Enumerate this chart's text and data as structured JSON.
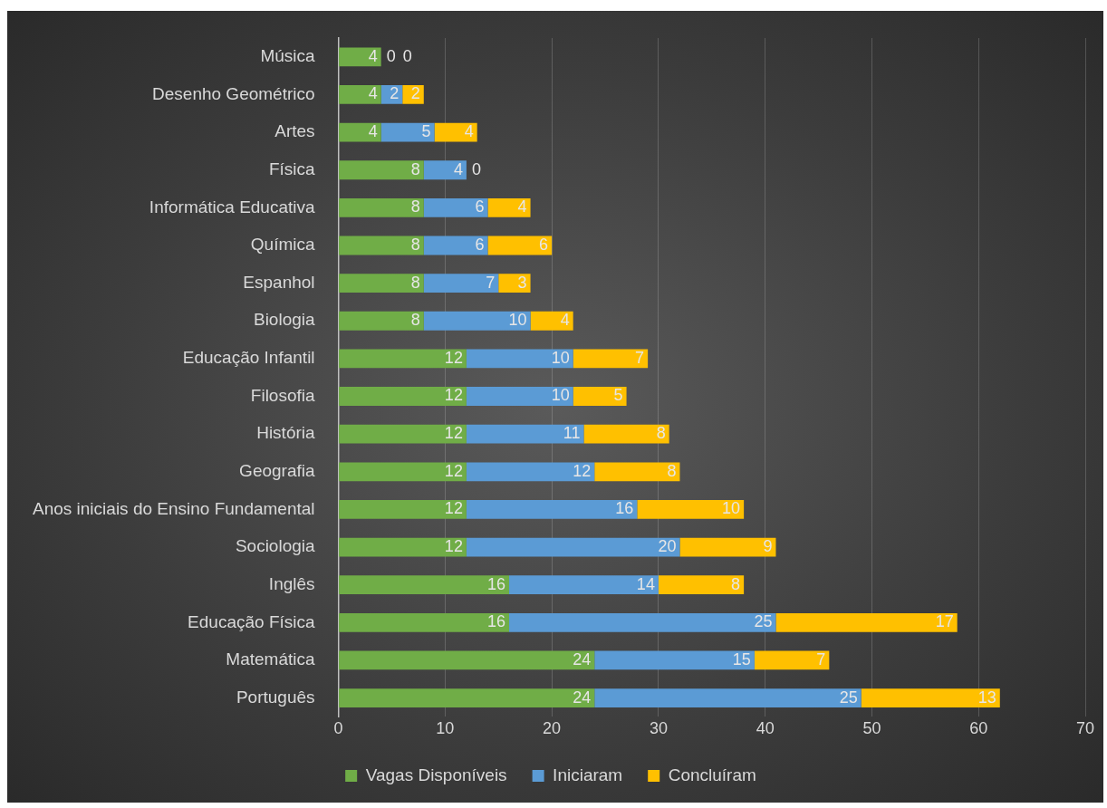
{
  "chart_data": {
    "type": "bar",
    "orientation": "horizontal",
    "stacked": true,
    "data_labels": true,
    "grid": "x",
    "legend": "bottom",
    "categories": [
      "Música",
      "Desenho Geométrico",
      "Artes",
      "Física",
      "Informática Educativa",
      "Química",
      "Espanhol",
      "Biologia",
      "Educação Infantil",
      "Filosofia",
      "História",
      "Geografia",
      "Anos iniciais do Ensino Fundamental",
      "Sociologia",
      "Inglês",
      "Educação Física",
      "Matemática",
      "Português"
    ],
    "series": [
      {
        "name": "Vagas Disponíveis",
        "color": "#70ad47",
        "values": [
          4,
          4,
          4,
          8,
          8,
          8,
          8,
          8,
          12,
          12,
          12,
          12,
          12,
          12,
          16,
          16,
          24,
          24
        ]
      },
      {
        "name": "Iniciaram",
        "color": "#5b9bd5",
        "values": [
          0,
          2,
          5,
          4,
          6,
          6,
          7,
          10,
          10,
          10,
          11,
          12,
          16,
          20,
          14,
          25,
          15,
          25
        ]
      },
      {
        "name": "Concluíram",
        "color": "#ffc000",
        "values": [
          0,
          2,
          4,
          0,
          4,
          6,
          3,
          4,
          7,
          5,
          8,
          8,
          10,
          9,
          8,
          17,
          7,
          13
        ]
      }
    ],
    "xlim": [
      0,
      70
    ],
    "xticks": [
      0,
      10,
      20,
      30,
      40,
      50,
      60,
      70
    ]
  }
}
